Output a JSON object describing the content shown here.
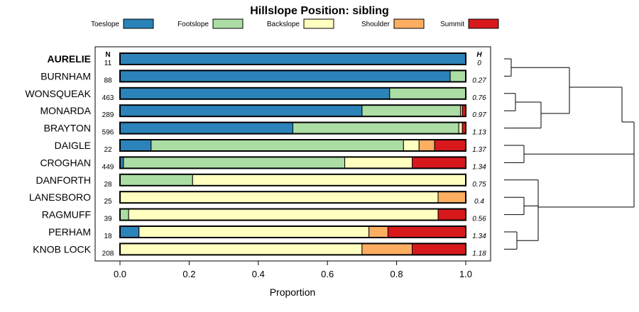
{
  "chart_data": {
    "type": "bar",
    "stacked": true,
    "orientation": "horizontal",
    "title": "Hillslope Position: sibling",
    "xlabel": "Proportion",
    "xlim": [
      0,
      1
    ],
    "x_ticks": [
      "0.0",
      "0.2",
      "0.4",
      "0.6",
      "0.8",
      "1.0"
    ],
    "n_header": "N",
    "h_header": "H",
    "legend": [
      {
        "name": "Toeslope",
        "color": "#2b83ba"
      },
      {
        "name": "Footslope",
        "color": "#abdda4"
      },
      {
        "name": "Backslope",
        "color": "#ffffbf"
      },
      {
        "name": "Shoulder",
        "color": "#fdae61"
      },
      {
        "name": "Summit",
        "color": "#d7191c"
      }
    ],
    "rows": [
      {
        "label": "AURELIE",
        "bold": true,
        "n": "11",
        "h": "0",
        "values": [
          1.0,
          0,
          0,
          0,
          0
        ]
      },
      {
        "label": "BURNHAM",
        "n": "88",
        "h": "0.27",
        "values": [
          0.955,
          0.045,
          0,
          0,
          0
        ]
      },
      {
        "label": "WONSQUEAK",
        "n": "463",
        "h": "0.76",
        "values": [
          0.78,
          0.22,
          0,
          0,
          0
        ]
      },
      {
        "label": "MONARDA",
        "n": "289",
        "h": "0.97",
        "values": [
          0.7,
          0.285,
          0.005,
          0,
          0.01
        ]
      },
      {
        "label": "BRAYTON",
        "n": "596",
        "h": "1.13",
        "values": [
          0.5,
          0.48,
          0.01,
          0,
          0.01
        ]
      },
      {
        "label": "DAIGLE",
        "n": "22",
        "h": "1.37",
        "values": [
          0.09,
          0.73,
          0.045,
          0.045,
          0.09
        ]
      },
      {
        "label": "CROGHAN",
        "n": "449",
        "h": "1.34",
        "values": [
          0.01,
          0.64,
          0.195,
          0,
          0.155
        ]
      },
      {
        "label": "DANFORTH",
        "n": "28",
        "h": "0.75",
        "values": [
          0,
          0.21,
          0.79,
          0,
          0
        ]
      },
      {
        "label": "LANESBORO",
        "n": "25",
        "h": "0.4",
        "values": [
          0,
          0,
          0.92,
          0.08,
          0
        ]
      },
      {
        "label": "RAGMUFF",
        "n": "39",
        "h": "0.56",
        "values": [
          0,
          0.025,
          0.895,
          0,
          0.08
        ]
      },
      {
        "label": "PERHAM",
        "n": "18",
        "h": "1.34",
        "values": [
          0.055,
          0,
          0.665,
          0.055,
          0.225
        ]
      },
      {
        "label": "KNOB LOCK",
        "n": "208",
        "h": "1.18",
        "values": [
          0,
          0,
          0.7,
          0.145,
          0.155
        ]
      }
    ],
    "dendrogram": true
  }
}
